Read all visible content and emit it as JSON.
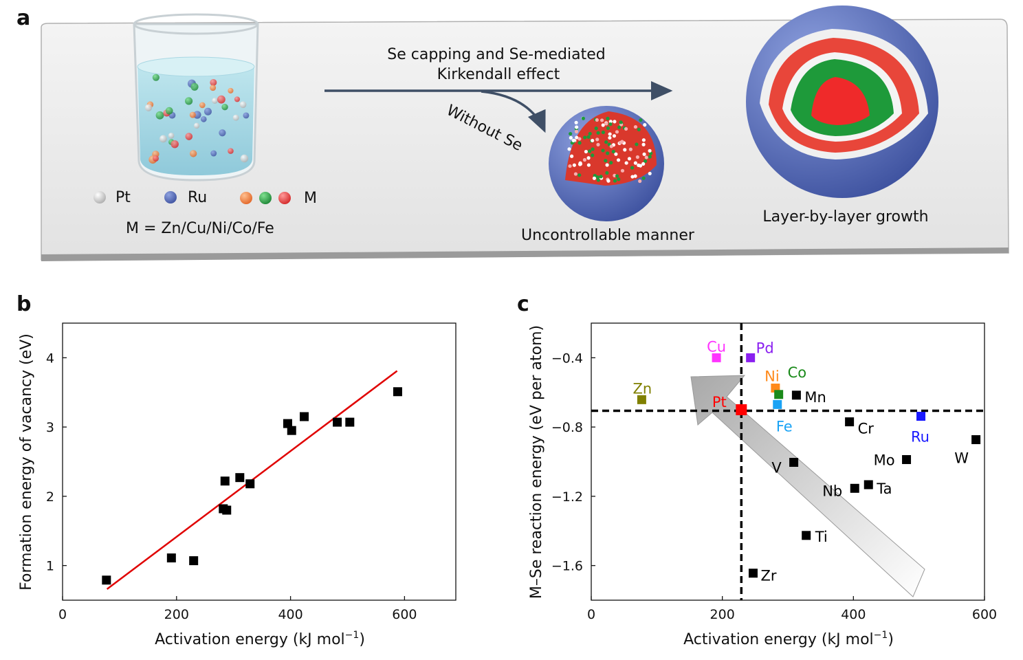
{
  "panels": {
    "a": "a",
    "b": "b",
    "c": "c"
  },
  "schematic": {
    "arrow_label_line1": "Se capping and Se-mediated",
    "arrow_label_line2": "Kirkendall effect",
    "branch_label": "Without Se",
    "legend": {
      "pt": "Pt",
      "ru": "Ru",
      "m": "M"
    },
    "m_definition": "M = Zn/Cu/Ni/Co/Fe",
    "left_product_label": "Uncontrollable manner",
    "right_product_label": "Layer-by-layer growth",
    "colors": {
      "pt": "#e8e8e8",
      "ru": "#4a5fb0",
      "m_orange": "#f07a30",
      "m_green": "#1f9a3a",
      "m_red": "#e83a3a"
    }
  },
  "chart_data": [
    {
      "type": "scatter",
      "panel": "b",
      "xlabel": {
        "text": "Activation energy (kJ mol",
        "sup": "−1",
        "close": ")"
      },
      "ylabel": "Formation energy of vacancy (eV)",
      "xlim": [
        0,
        690
      ],
      "ylim": [
        0.5,
        4.5
      ],
      "xticks": [
        "0",
        "200",
        "400",
        "600"
      ],
      "yticks": [
        "1",
        "2",
        "3",
        "4"
      ],
      "grid": false,
      "marker_color": "#000000",
      "points": [
        [
          77,
          0.79
        ],
        [
          191,
          1.11
        ],
        [
          230,
          1.07
        ],
        [
          282,
          1.82
        ],
        [
          288,
          1.8
        ],
        [
          285,
          2.22
        ],
        [
          311,
          2.27
        ],
        [
          329,
          2.18
        ],
        [
          395,
          3.05
        ],
        [
          402,
          2.95
        ],
        [
          424,
          3.15
        ],
        [
          482,
          3.07
        ],
        [
          504,
          3.07
        ],
        [
          588,
          3.51
        ]
      ],
      "fit_line": {
        "color": "#e00000",
        "from": [
          78,
          0.66
        ],
        "to": [
          587,
          3.81
        ]
      }
    },
    {
      "type": "scatter",
      "panel": "c",
      "xlabel": {
        "text": "Activation energy (kJ mol",
        "sup": "−1",
        "close": ")"
      },
      "ylabel": "M–Se reaction energy (eV per atom)",
      "xlim": [
        0,
        600
      ],
      "ylim": [
        -1.8,
        -0.2
      ],
      "xticks": [
        "0",
        "200",
        "400",
        "600"
      ],
      "yticks": [
        "−0.4",
        "−0.8",
        "−1.2",
        "−1.6"
      ],
      "grid": false,
      "reference_lines": {
        "x": 229,
        "y": -0.706,
        "style": "dashed"
      },
      "trend_arrow": "toward Pt (upper-left)",
      "points": [
        {
          "label": "Cu",
          "x": 191,
          "y": -0.4,
          "color": "#ff33ff"
        },
        {
          "label": "Pd",
          "x": 243,
          "y": -0.4,
          "color": "#8a1ff0"
        },
        {
          "label": "Zn",
          "x": 77,
          "y": -0.642,
          "color": "#808000"
        },
        {
          "label": "Ni",
          "x": 281,
          "y": -0.575,
          "color": "#ff8a1a"
        },
        {
          "label": "Co",
          "x": 286,
          "y": -0.612,
          "color": "#1a8a1a"
        },
        {
          "label": "Mn",
          "x": 313,
          "y": -0.616,
          "color": "#000000"
        },
        {
          "label": "Fe",
          "x": 284,
          "y": -0.67,
          "color": "#1aa3f5"
        },
        {
          "label": "Pt",
          "x": 229,
          "y": -0.7,
          "color": "#ff0000"
        },
        {
          "label": "Cr",
          "x": 394,
          "y": -0.77,
          "color": "#000000"
        },
        {
          "label": "Ru",
          "x": 503,
          "y": -0.738,
          "color": "#1a1aff"
        },
        {
          "label": "W",
          "x": 587,
          "y": -0.873,
          "color": "#000000"
        },
        {
          "label": "Mo",
          "x": 481,
          "y": -0.988,
          "color": "#000000"
        },
        {
          "label": "V",
          "x": 309,
          "y": -1.004,
          "color": "#000000"
        },
        {
          "label": "Ta",
          "x": 423,
          "y": -1.133,
          "color": "#000000"
        },
        {
          "label": "Nb",
          "x": 402,
          "y": -1.154,
          "color": "#000000"
        },
        {
          "label": "Ti",
          "x": 328,
          "y": -1.426,
          "color": "#000000"
        },
        {
          "label": "Zr",
          "x": 247,
          "y": -1.644,
          "color": "#000000"
        }
      ]
    }
  ]
}
